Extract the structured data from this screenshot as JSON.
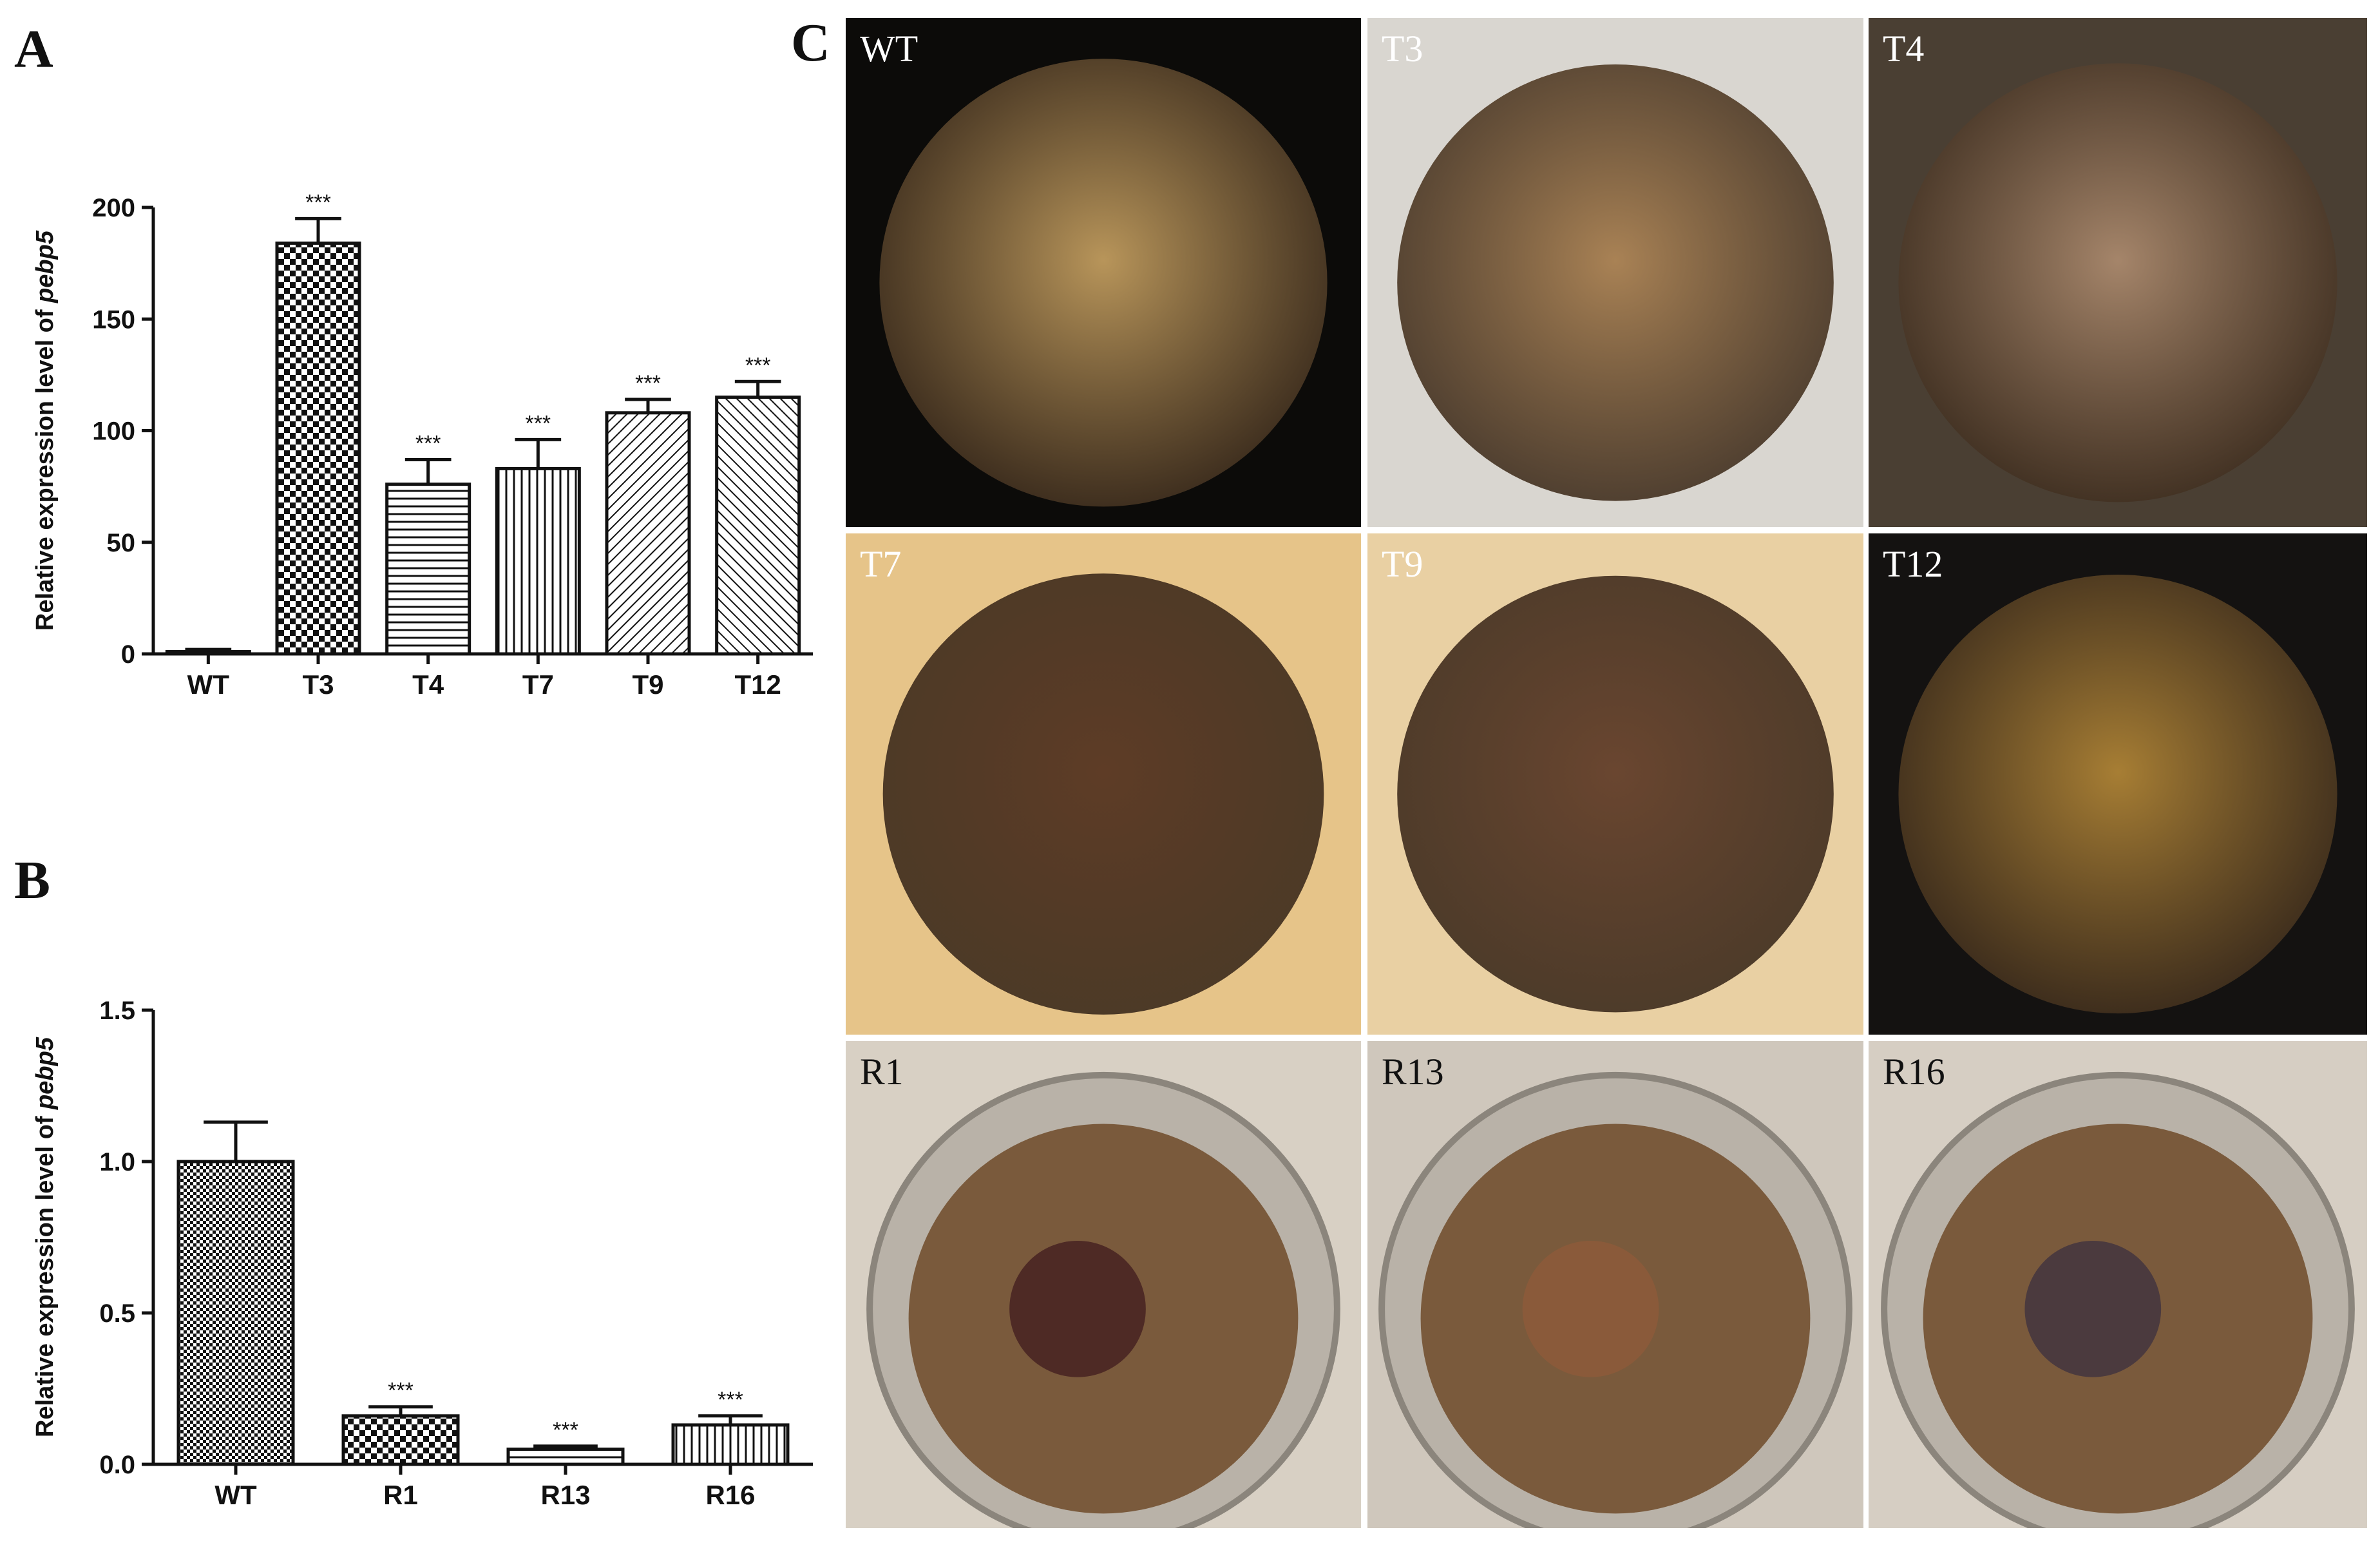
{
  "panels": {
    "a": "A",
    "b": "B",
    "c": "C"
  },
  "chart_data": [
    {
      "type": "bar",
      "panel": "A",
      "categories": [
        "WT",
        "T3",
        "T4",
        "T7",
        "T9",
        "T12"
      ],
      "values": [
        1,
        184,
        76,
        83,
        108,
        115
      ],
      "errors": [
        1,
        11,
        11,
        13,
        6,
        7
      ],
      "significance": [
        "",
        "***",
        "***",
        "***",
        "***",
        "***"
      ],
      "patterns": [
        "dots",
        "checker",
        "hlines",
        "vlines",
        "diag-narrow",
        "diag-wide"
      ],
      "ylabel_prefix": "Relative expression level of",
      "ylabel_gene": "pebp5",
      "ylim": [
        0,
        200
      ],
      "yticks": [
        0,
        50,
        100,
        150,
        200
      ]
    },
    {
      "type": "bar",
      "panel": "B",
      "categories": [
        "WT",
        "R1",
        "R13",
        "R16"
      ],
      "values": [
        1.0,
        0.16,
        0.05,
        0.13
      ],
      "errors": [
        0.13,
        0.03,
        0.01,
        0.03
      ],
      "significance": [
        "",
        "***",
        "***",
        "***"
      ],
      "patterns": [
        "checker-fine",
        "checker",
        "hlines",
        "vlines"
      ],
      "ylabel_prefix": "Relative expression level of",
      "ylabel_gene": "pebp5",
      "ylim": [
        0,
        1.5
      ],
      "yticks": [
        0.0,
        0.5,
        1.0,
        1.5
      ],
      "ytick_labels": [
        "0.0",
        "0.5",
        "1.0",
        "1.5"
      ]
    }
  ],
  "photos": [
    {
      "label": "WT",
      "bg": "#0c0b09",
      "cap": "#b8955a",
      "label_color": "#ffffff"
    },
    {
      "label": "T3",
      "bg": "#d9d6d0",
      "cap": "#a98255",
      "label_color": "#ffffff"
    },
    {
      "label": "T4",
      "bg": "#4a3f33",
      "cap": "#a5856a",
      "label_color": "#ffffff"
    },
    {
      "label": "T7",
      "bg": "#e6c489",
      "cap": "#5e3c26",
      "label_color": "#ffffff"
    },
    {
      "label": "T9",
      "bg": "#e9d0a3",
      "cap": "#6a4630",
      "label_color": "#ffffff"
    },
    {
      "label": "T12",
      "bg": "#141211",
      "cap": "#a77e34",
      "label_color": "#ffffff"
    },
    {
      "label": "R1",
      "bg": "#d8d0c4",
      "cap": "#4e2a25",
      "label_color": "#111111"
    },
    {
      "label": "R13",
      "bg": "#cfc7bc",
      "cap": "#8a5a3a",
      "label_color": "#111111"
    },
    {
      "label": "R16",
      "bg": "#d6cec3",
      "cap": "#4b3a3e",
      "label_color": "#111111"
    }
  ]
}
